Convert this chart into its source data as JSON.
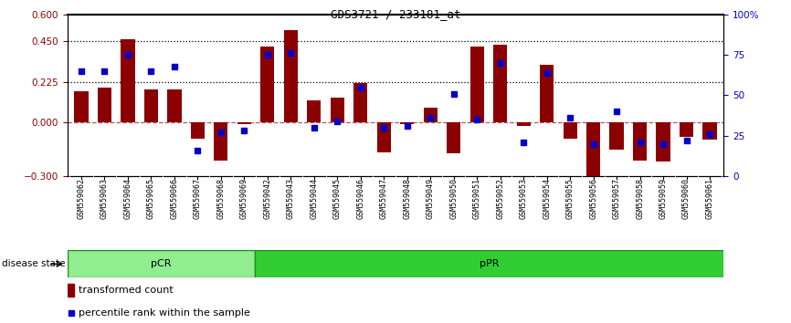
{
  "title": "GDS3721 / 233181_at",
  "samples": [
    "GSM559062",
    "GSM559063",
    "GSM559064",
    "GSM559065",
    "GSM559066",
    "GSM559067",
    "GSM559068",
    "GSM559069",
    "GSM559042",
    "GSM559043",
    "GSM559044",
    "GSM559045",
    "GSM559046",
    "GSM559047",
    "GSM559048",
    "GSM559049",
    "GSM559050",
    "GSM559051",
    "GSM559052",
    "GSM559053",
    "GSM559054",
    "GSM559055",
    "GSM559056",
    "GSM559057",
    "GSM559058",
    "GSM559059",
    "GSM559060",
    "GSM559061"
  ],
  "bar_values": [
    0.175,
    0.195,
    0.46,
    0.185,
    0.185,
    -0.09,
    -0.215,
    -0.01,
    0.42,
    0.515,
    0.12,
    0.135,
    0.22,
    -0.17,
    -0.01,
    0.08,
    -0.175,
    0.42,
    0.43,
    -0.02,
    0.32,
    -0.09,
    -0.32,
    -0.155,
    -0.215,
    -0.22,
    -0.08,
    -0.095
  ],
  "percentile_values": [
    65,
    65,
    75,
    65,
    68,
    16,
    27,
    28,
    75,
    76,
    30,
    34,
    55,
    30,
    31,
    36,
    51,
    35,
    70,
    21,
    64,
    36,
    20,
    40,
    21,
    20,
    22,
    26
  ],
  "pCR_count": 8,
  "pPR_count": 20,
  "ylim_left": [
    -0.3,
    0.6
  ],
  "ylim_right": [
    0,
    100
  ],
  "yticks_left": [
    -0.3,
    0.0,
    0.225,
    0.45,
    0.6
  ],
  "yticks_right": [
    0,
    25,
    50,
    75,
    100
  ],
  "hlines": [
    0.225,
    0.45
  ],
  "bar_color": "#8B0000",
  "dot_color": "#0000CD",
  "pCR_color": "#90EE90",
  "pPR_color": "#32CD32",
  "tick_bg_color": "#CCCCCC",
  "bar_width": 0.6,
  "title_fontsize": 9,
  "label_fontsize": 6.0
}
